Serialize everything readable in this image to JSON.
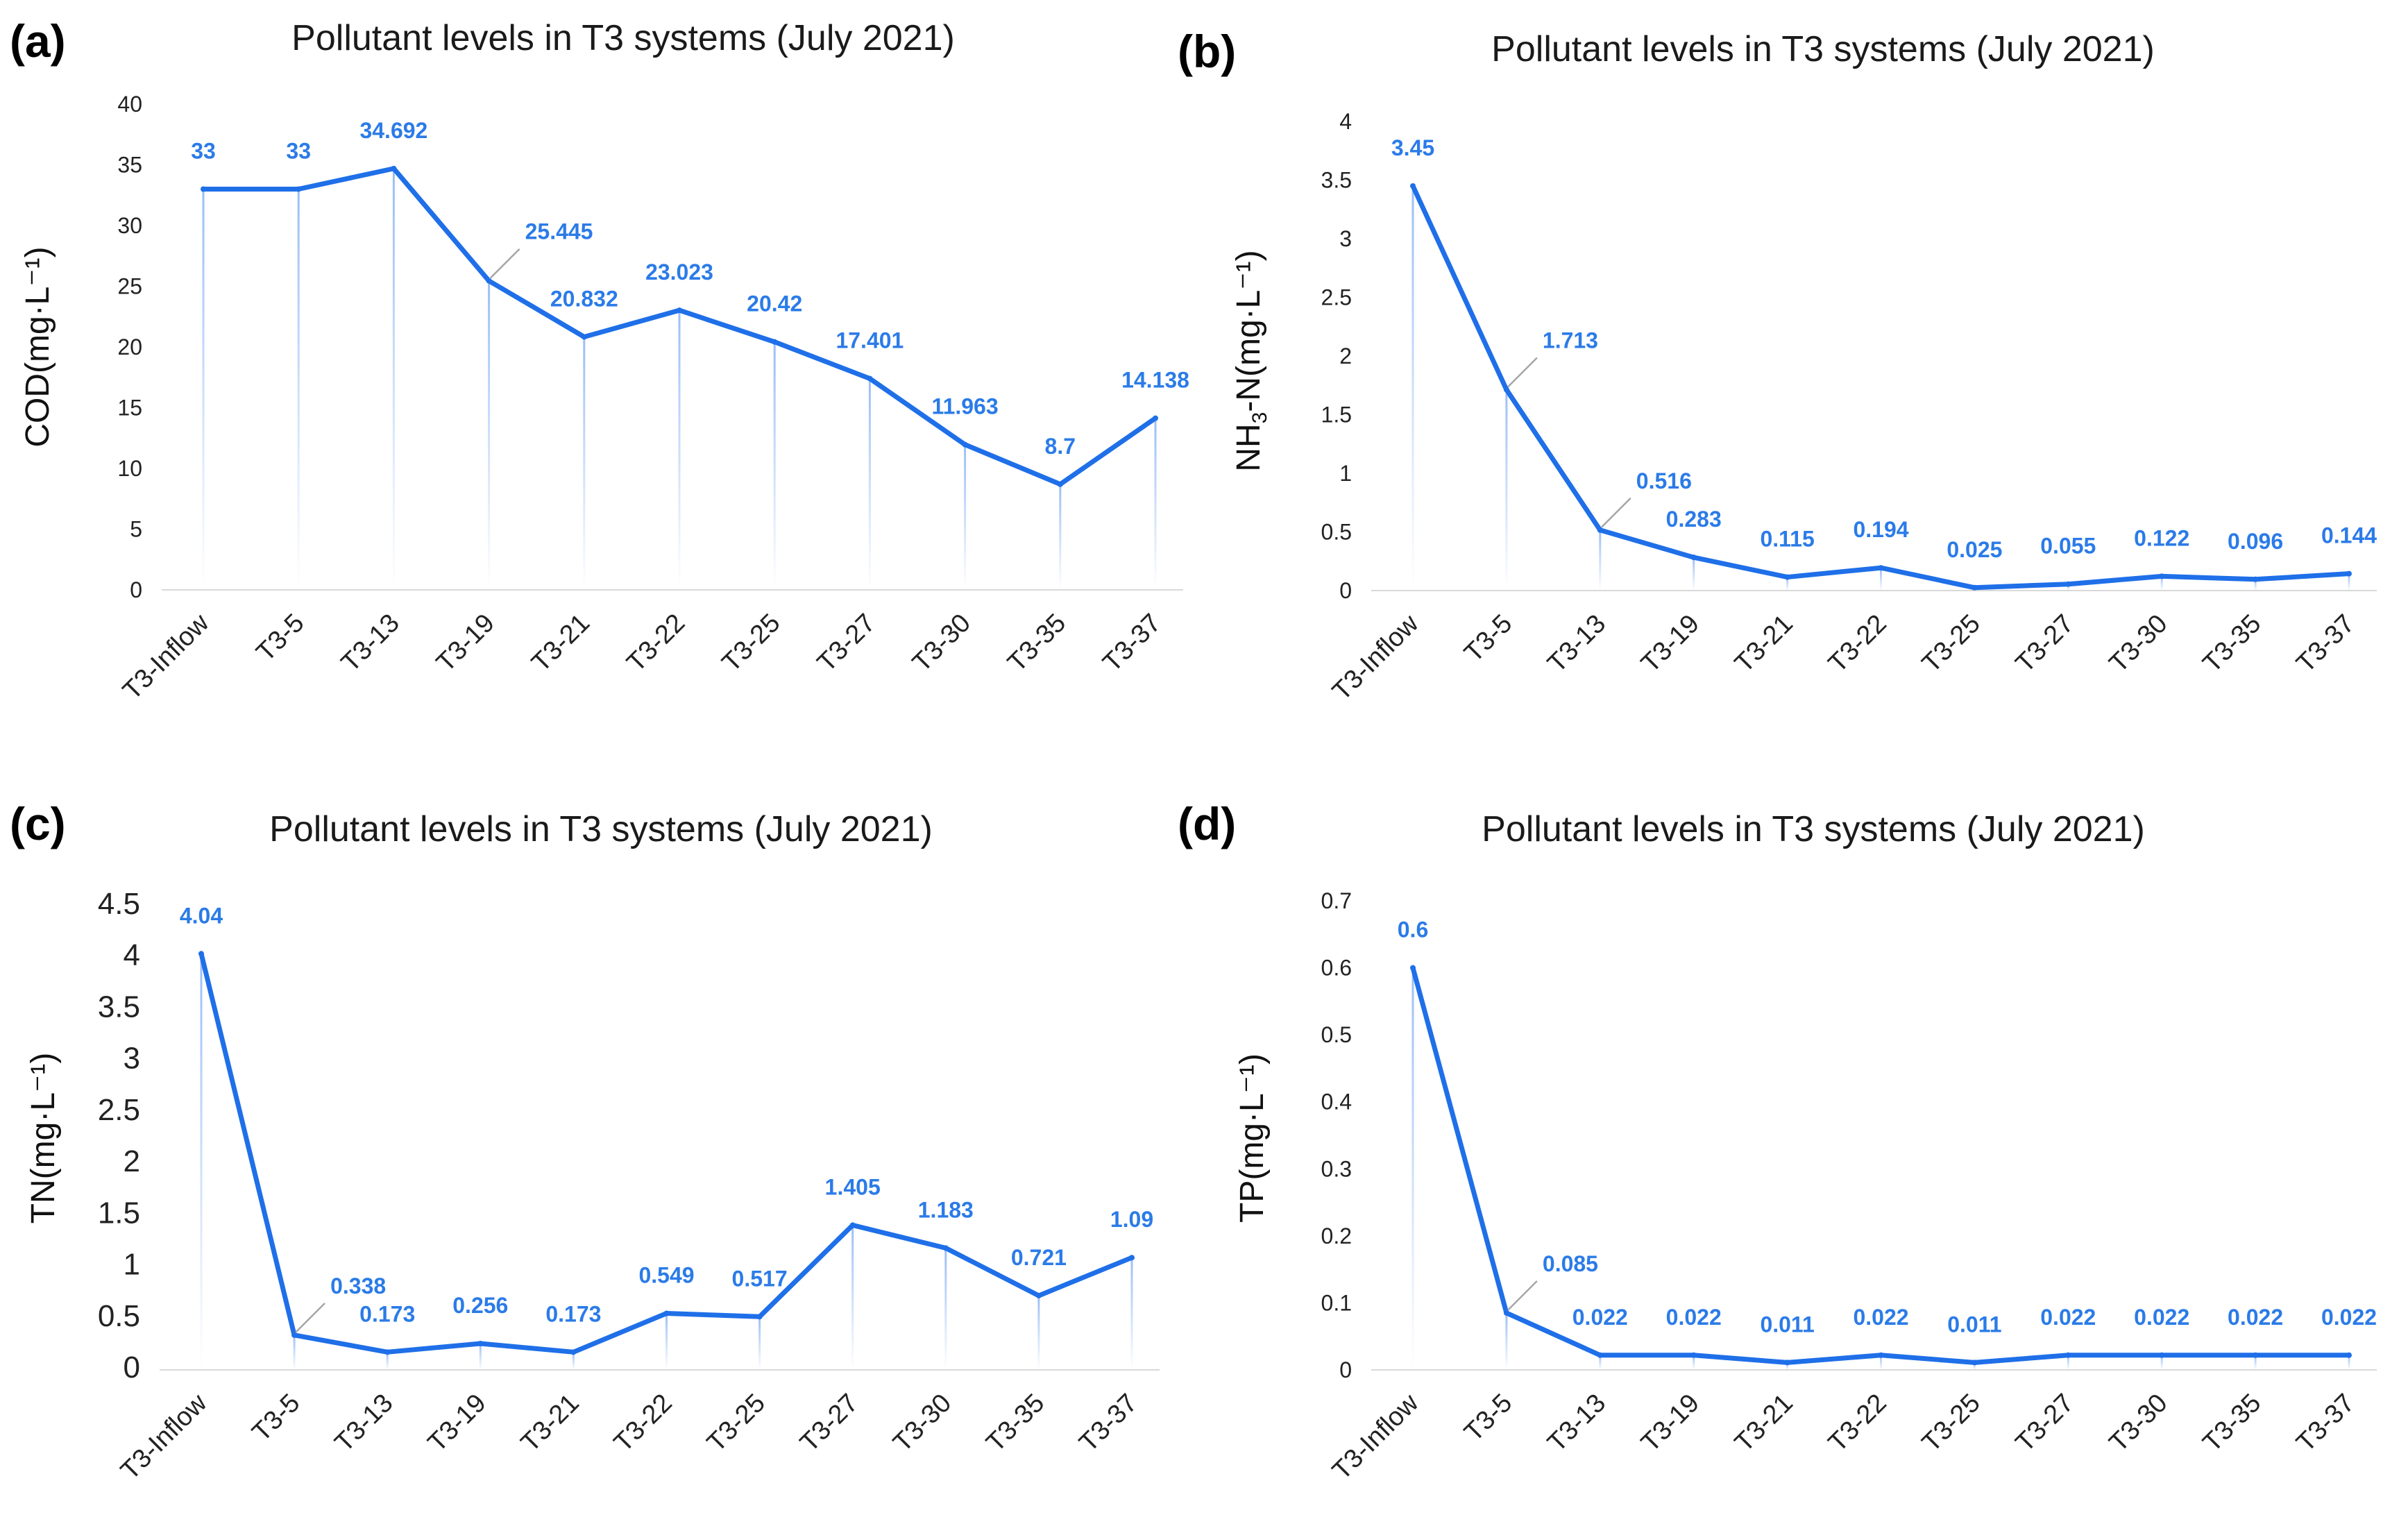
{
  "colors": {
    "line": "#1f6fe8",
    "label": "#2b7be8",
    "axis": "#222222",
    "leader": "#a6a6a6"
  },
  "chart_data": [
    {
      "id": "a",
      "panel_label": "(a)",
      "type": "line",
      "title": "Pollutant levels in T3 systems (July 2021)",
      "ylabel": "COD(mg·L⁻¹)",
      "categories": [
        "T3-Inflow",
        "T3-5",
        "T3-13",
        "T3-19",
        "T3-21",
        "T3-22",
        "T3-25",
        "T3-27",
        "T3-30",
        "T3-35",
        "T3-37"
      ],
      "values": [
        33,
        33,
        34.692,
        25.445,
        20.832,
        23.023,
        20.42,
        17.401,
        11.963,
        8.7,
        14.138
      ],
      "labels": [
        "33",
        "33",
        "34.692",
        "25.445",
        "20.832",
        "23.023",
        "20.42",
        "17.401",
        "11.963",
        "8.7",
        "14.138"
      ],
      "ylim": [
        0,
        40
      ],
      "yticks": [
        0,
        5,
        10,
        15,
        20,
        25,
        30,
        35,
        40
      ],
      "ytick_labels": [
        "0",
        "5",
        "10",
        "15",
        "20",
        "25",
        "30",
        "35",
        "40"
      ]
    },
    {
      "id": "b",
      "panel_label": "(b)",
      "type": "line",
      "title": "Pollutant levels in T3 systems (July 2021)",
      "ylabel_parts": [
        "NH",
        "3",
        "-N(mg·L⁻¹)"
      ],
      "categories": [
        "T3-Inflow",
        "T3-5",
        "T3-13",
        "T3-19",
        "T3-21",
        "T3-22",
        "T3-25",
        "T3-27",
        "T3-30",
        "T3-35",
        "T3-37"
      ],
      "values": [
        3.45,
        1.713,
        0.516,
        0.283,
        0.115,
        0.194,
        0.025,
        0.055,
        0.122,
        0.096,
        0.144
      ],
      "labels": [
        "3.45",
        "1.713",
        "0.516",
        "0.283",
        "0.115",
        "0.194",
        "0.025",
        "0.055",
        "0.122",
        "0.096",
        "0.144"
      ],
      "ylim": [
        0,
        4
      ],
      "yticks": [
        0,
        0.5,
        1,
        1.5,
        2,
        2.5,
        3,
        3.5,
        4
      ],
      "ytick_labels": [
        "0",
        "0.5",
        "1",
        "1.5",
        "2",
        "2.5",
        "3",
        "3.5",
        "4"
      ]
    },
    {
      "id": "c",
      "panel_label": "(c)",
      "type": "line",
      "title": "Pollutant levels in T3 systems (July 2021)",
      "ylabel": "TN(mg·L⁻¹)",
      "categories": [
        "T3-Inflow",
        "T3-5",
        "T3-13",
        "T3-19",
        "T3-21",
        "T3-22",
        "T3-25",
        "T3-27",
        "T3-30",
        "T3-35",
        "T3-37"
      ],
      "values": [
        4.04,
        0.338,
        0.173,
        0.256,
        0.173,
        0.549,
        0.517,
        1.405,
        1.183,
        0.721,
        1.09
      ],
      "labels": [
        "4.04",
        "0.338",
        "0.173",
        "0.256",
        "0.173",
        "0.549",
        "0.517",
        "1.405",
        "1.183",
        "0.721",
        "1.09"
      ],
      "ylim": [
        0,
        4.5
      ],
      "yticks": [
        0,
        0.5,
        1,
        1.5,
        2,
        2.5,
        3,
        3.5,
        4,
        4.5
      ],
      "ytick_labels": [
        "0",
        "0.5",
        "1",
        "1.5",
        "2",
        "2.5",
        "3",
        "3.5",
        "4",
        "4.5"
      ]
    },
    {
      "id": "d",
      "panel_label": "(d)",
      "type": "line",
      "title": "Pollutant levels in T3 systems (July 2021)",
      "ylabel": "TP(mg·L⁻¹)",
      "categories": [
        "T3-Inflow",
        "T3-5",
        "T3-13",
        "T3-19",
        "T3-21",
        "T3-22",
        "T3-25",
        "T3-27",
        "T3-30",
        "T3-35",
        "T3-37"
      ],
      "values": [
        0.6,
        0.085,
        0.022,
        0.022,
        0.011,
        0.022,
        0.011,
        0.022,
        0.022,
        0.022,
        0.022
      ],
      "labels": [
        "0.6",
        "0.085",
        "0.022",
        "0.022",
        "0.011",
        "0.022",
        "0.011",
        "0.022",
        "0.022",
        "0.022",
        "0.022"
      ],
      "ylim": [
        0,
        0.7
      ],
      "yticks": [
        0,
        0.1,
        0.2,
        0.3,
        0.4,
        0.5,
        0.6,
        0.7
      ],
      "ytick_labels": [
        "0",
        "0.1",
        "0.2",
        "0.3",
        "0.4",
        "0.5",
        "0.6",
        "0.7"
      ]
    }
  ]
}
